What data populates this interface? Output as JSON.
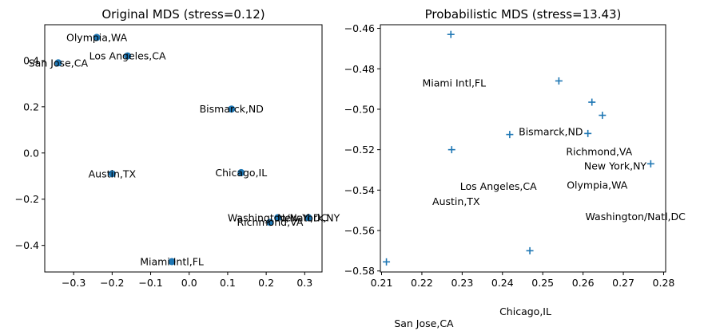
{
  "colors": {
    "marker": "#1f77b4"
  },
  "chart_data": [
    {
      "type": "scatter",
      "title": "Original MDS (stress=0.12)",
      "marker": "circle",
      "xlim": [
        -0.375,
        0.345
      ],
      "ylim": [
        -0.515,
        0.555
      ],
      "xticks": [
        -0.3,
        -0.2,
        -0.1,
        0.0,
        0.1,
        0.2,
        0.3
      ],
      "xtick_labels": [
        "−0.3",
        "−0.2",
        "−0.1",
        "0.0",
        "0.1",
        "0.2",
        "0.3"
      ],
      "yticks": [
        -0.4,
        -0.2,
        0.0,
        0.2,
        0.4
      ],
      "ytick_labels": [
        "−0.4",
        "−0.2",
        "0.0",
        "0.2",
        "0.4"
      ],
      "points": [
        {
          "x": -0.24,
          "y": 0.5
        },
        {
          "x": -0.16,
          "y": 0.42
        },
        {
          "x": -0.34,
          "y": 0.39
        },
        {
          "x": 0.11,
          "y": 0.19
        },
        {
          "x": -0.2,
          "y": -0.09
        },
        {
          "x": 0.135,
          "y": -0.085
        },
        {
          "x": 0.23,
          "y": -0.28
        },
        {
          "x": 0.31,
          "y": -0.28
        },
        {
          "x": 0.21,
          "y": -0.3
        },
        {
          "x": -0.045,
          "y": -0.47
        }
      ],
      "annotations": [
        {
          "text": "Olympia,WA",
          "x": -0.24,
          "y": 0.5
        },
        {
          "text": "Los Angeles,CA",
          "x": -0.16,
          "y": 0.42
        },
        {
          "text": "San Jose,CA",
          "x": -0.34,
          "y": 0.39
        },
        {
          "text": "Bismarck,ND",
          "x": 0.11,
          "y": 0.19
        },
        {
          "text": "Austin,TX",
          "x": -0.2,
          "y": -0.09
        },
        {
          "text": "Chicago,IL",
          "x": 0.135,
          "y": -0.085
        },
        {
          "text": "Washington/Natl,DC",
          "x": 0.23,
          "y": -0.28
        },
        {
          "text": "New York,NY",
          "x": 0.31,
          "y": -0.28
        },
        {
          "text": "Richmond,VA",
          "x": 0.21,
          "y": -0.3
        },
        {
          "text": "Miami Intl,FL",
          "x": -0.045,
          "y": -0.47
        }
      ]
    },
    {
      "type": "scatter",
      "title": "Probabilistic MDS (stress=13.43)",
      "marker": "plus",
      "xlim": [
        0.2097,
        0.2805
      ],
      "ylim": [
        -0.5805,
        -0.4582
      ],
      "xticks": [
        0.21,
        0.22,
        0.23,
        0.24,
        0.25,
        0.26,
        0.27,
        0.28
      ],
      "xtick_labels": [
        "0.21",
        "0.22",
        "0.23",
        "0.24",
        "0.25",
        "0.26",
        "0.27",
        "0.28"
      ],
      "yticks": [
        -0.58,
        -0.56,
        -0.54,
        -0.52,
        -0.5,
        -0.48,
        -0.46
      ],
      "ytick_labels": [
        "−0.58",
        "−0.56",
        "−0.54",
        "−0.52",
        "−0.50",
        "−0.48",
        "−0.46"
      ],
      "points": [
        {
          "x": 0.2272,
          "y": -0.463
        },
        {
          "x": 0.254,
          "y": -0.486
        },
        {
          "x": 0.2622,
          "y": -0.4965
        },
        {
          "x": 0.2648,
          "y": -0.503
        },
        {
          "x": 0.2418,
          "y": -0.5125
        },
        {
          "x": 0.2612,
          "y": -0.512
        },
        {
          "x": 0.2274,
          "y": -0.52
        },
        {
          "x": 0.2768,
          "y": -0.527
        },
        {
          "x": 0.2468,
          "y": -0.57
        },
        {
          "x": 0.2112,
          "y": -0.5755
        }
      ],
      "annotations": [
        {
          "text": "Miami Intl,FL",
          "x": 0.228,
          "y": -0.487
        },
        {
          "text": "Bismarck,ND",
          "x": 0.252,
          "y": -0.511
        },
        {
          "text": "Richmond,VA",
          "x": 0.264,
          "y": -0.521
        },
        {
          "text": "New York,NY",
          "x": 0.268,
          "y": -0.528
        },
        {
          "text": "Los Angeles,CA",
          "x": 0.239,
          "y": -0.538
        },
        {
          "text": "Olympia,WA",
          "x": 0.2635,
          "y": -0.5375
        },
        {
          "text": "Austin,TX",
          "x": 0.2285,
          "y": -0.5455
        },
        {
          "text": "Washington/Natl,DC",
          "x": 0.273,
          "y": -0.553
        },
        {
          "text": "Chicago,IL",
          "x": 0.2457,
          "y": -0.6
        },
        {
          "text": "San Jose,CA",
          "x": 0.2205,
          "y": -0.606
        }
      ]
    }
  ]
}
